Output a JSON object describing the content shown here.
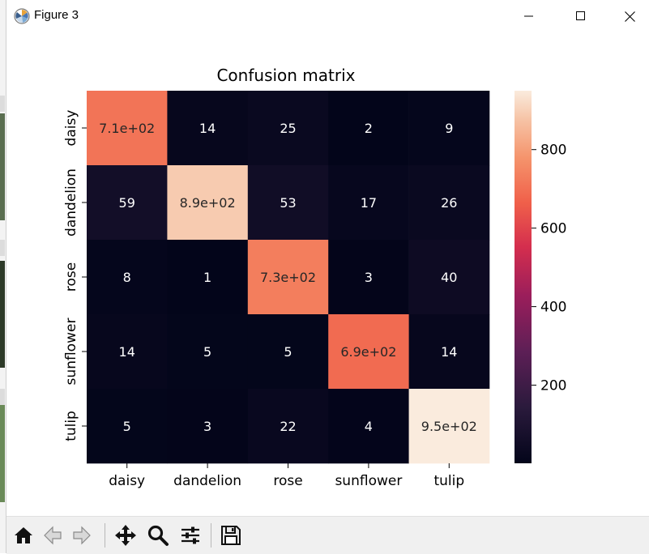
{
  "window": {
    "title": "Figure 3"
  },
  "toolbar": {
    "buttons": [
      {
        "name": "home-button",
        "icon": "home-icon"
      },
      {
        "name": "back-button",
        "icon": "arrow-left-icon"
      },
      {
        "name": "forward-button",
        "icon": "arrow-right-icon"
      },
      {
        "name": "pan-button",
        "icon": "move-icon"
      },
      {
        "name": "zoom-button",
        "icon": "magnifier-icon"
      },
      {
        "name": "configure-subplots-button",
        "icon": "sliders-icon"
      },
      {
        "name": "save-button",
        "icon": "floppy-disk-icon"
      }
    ]
  },
  "chart_data": {
    "type": "heatmap",
    "title": "Confusion matrix",
    "xlabel": "",
    "ylabel": "",
    "x_categories": [
      "daisy",
      "dandelion",
      "rose",
      "sunflower",
      "tulip"
    ],
    "y_categories": [
      "daisy",
      "dandelion",
      "rose",
      "sunflower",
      "tulip"
    ],
    "values": [
      [
        710,
        14,
        25,
        2,
        9
      ],
      [
        59,
        890,
        53,
        17,
        26
      ],
      [
        8,
        1,
        730,
        3,
        40
      ],
      [
        14,
        5,
        5,
        690,
        14
      ],
      [
        5,
        3,
        22,
        4,
        950
      ]
    ],
    "annotations": [
      [
        "7.1e+02",
        "14",
        "25",
        "2",
        "9"
      ],
      [
        "59",
        "8.9e+02",
        "53",
        "17",
        "26"
      ],
      [
        "8",
        "1",
        "7.3e+02",
        "3",
        "40"
      ],
      [
        "14",
        "5",
        "5",
        "6.9e+02",
        "14"
      ],
      [
        "5",
        "3",
        "22",
        "4",
        "9.5e+02"
      ]
    ],
    "colormap": "rocket",
    "colorbar": {
      "ticks": [
        200,
        400,
        600,
        800
      ],
      "tick_labels": [
        "200",
        "400",
        "600",
        "800"
      ],
      "range": [
        1,
        950
      ]
    },
    "grid": false
  }
}
